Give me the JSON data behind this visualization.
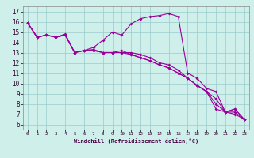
{
  "xlabel": "Windchill (Refroidissement éolien,°C)",
  "xlim": [
    -0.5,
    23.5
  ],
  "ylim": [
    5.5,
    17.5
  ],
  "xticks": [
    0,
    1,
    2,
    3,
    4,
    5,
    6,
    7,
    8,
    9,
    10,
    11,
    12,
    13,
    14,
    15,
    16,
    17,
    18,
    19,
    20,
    21,
    22,
    23
  ],
  "yticks": [
    6,
    7,
    8,
    9,
    10,
    11,
    12,
    13,
    14,
    15,
    16,
    17
  ],
  "background_color": "#cff0ea",
  "line_color": "#990099",
  "grid_color": "#99cccc",
  "line1_y": [
    15.9,
    14.5,
    14.7,
    14.5,
    14.7,
    13.0,
    13.2,
    13.5,
    14.2,
    15.0,
    14.7,
    15.8,
    16.3,
    16.5,
    16.6,
    16.8,
    16.5,
    11.0,
    10.5,
    9.5,
    9.2,
    7.2,
    7.5,
    6.5
  ],
  "line2_y": [
    15.9,
    14.5,
    14.7,
    14.5,
    14.7,
    13.0,
    13.2,
    13.2,
    13.0,
    13.0,
    13.0,
    12.8,
    12.5,
    12.2,
    11.8,
    11.5,
    11.0,
    10.5,
    9.8,
    9.2,
    8.5,
    7.2,
    7.0,
    6.5
  ],
  "line3_y": [
    15.9,
    14.5,
    14.7,
    14.5,
    14.8,
    13.0,
    13.2,
    13.2,
    13.0,
    13.0,
    13.0,
    13.0,
    12.8,
    12.5,
    12.0,
    11.8,
    11.3,
    10.5,
    9.8,
    9.2,
    7.5,
    7.2,
    7.2,
    6.5
  ],
  "line4_y": [
    15.9,
    14.5,
    14.7,
    14.5,
    14.7,
    13.0,
    13.2,
    13.3,
    13.0,
    13.0,
    13.2,
    12.8,
    12.5,
    12.2,
    11.8,
    11.5,
    11.0,
    10.5,
    9.8,
    9.2,
    8.0,
    7.2,
    7.5,
    6.5
  ]
}
